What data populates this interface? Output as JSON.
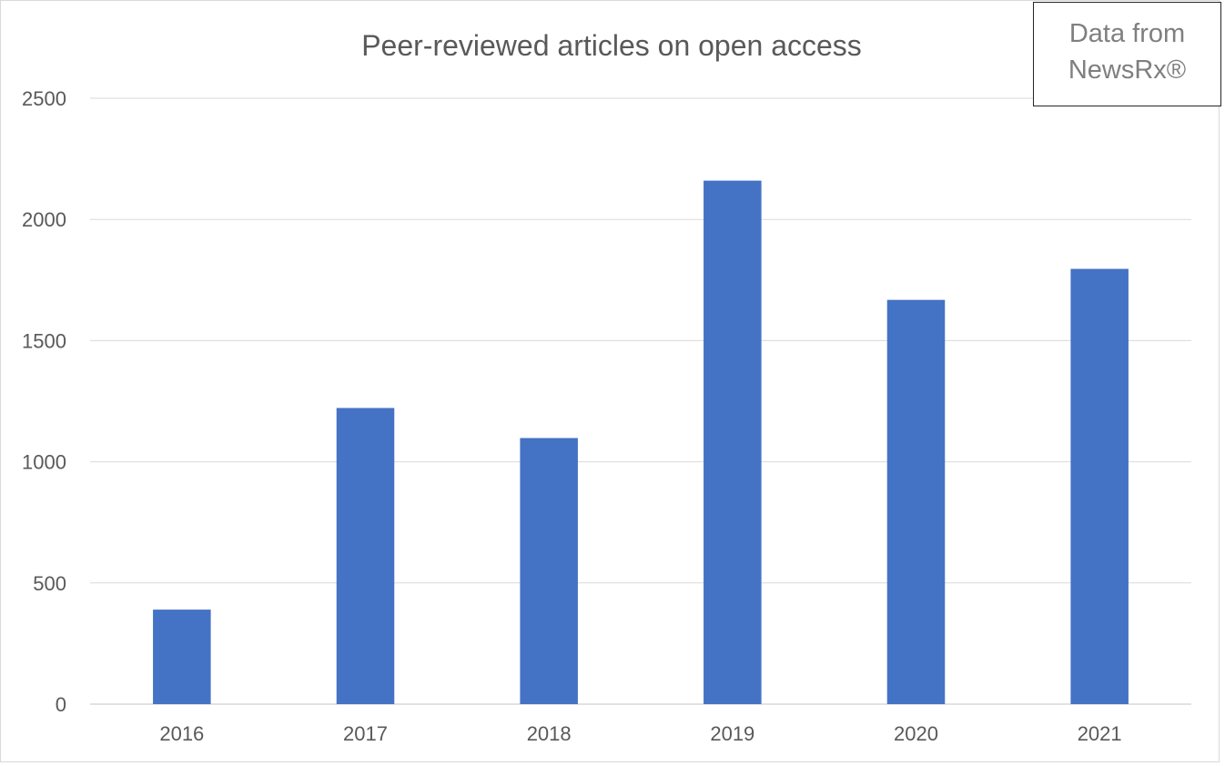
{
  "chart_data": {
    "type": "bar",
    "title": "Peer-reviewed articles on open access",
    "categories": [
      "2016",
      "2017",
      "2018",
      "2019",
      "2020",
      "2021"
    ],
    "values": [
      390,
      1222,
      1098,
      2160,
      1668,
      1796
    ],
    "xlabel": "",
    "ylabel": "",
    "ylim": [
      0,
      2500
    ],
    "yticks": [
      "0",
      "500",
      "1000",
      "1500",
      "2000",
      "2500"
    ],
    "grid": true,
    "bar_color": "#4472C4",
    "annotation": "Data from NewsRx®"
  }
}
